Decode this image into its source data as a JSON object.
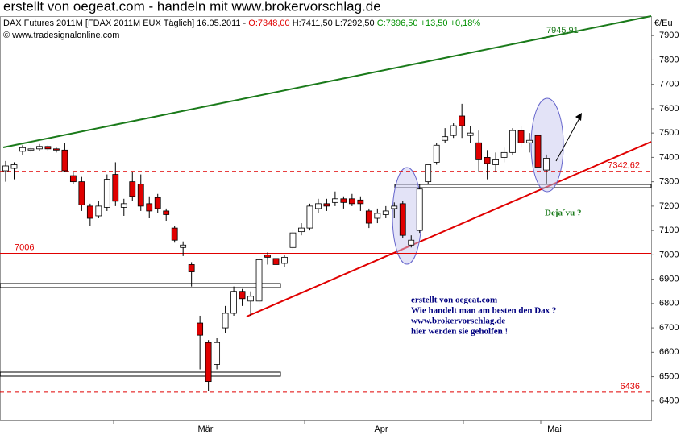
{
  "header": {
    "title": "erstellt von oegeat.com - handeln mit www.brokervorschlag.de",
    "instrument": "DAX Futures 2011M [FDAX 2011M EUX  Täglich] 16.05.2011 -",
    "open": "O:7348,00",
    "hlc": "H:7411,50 L:7292,50",
    "close": "C:7396,50 +13,50 +0,18%",
    "copyright": "© www.tradesignalonline.com"
  },
  "chart_data": {
    "type": "candlestick",
    "y_unit": "€/Eu",
    "up_color": "#ffffff",
    "down_color": "#e00000",
    "open": [
      7345,
      7355,
      7425,
      7430,
      7435,
      7445,
      7435,
      7430,
      7325,
      7300,
      7200,
      7160,
      7195,
      7330,
      7195,
      7300,
      7290,
      7210,
      7235,
      7180,
      7110,
      7030,
      6960,
      6720,
      6640,
      6550,
      6700,
      6760,
      6850,
      6810,
      6810,
      7000,
      6985,
      6965,
      7030,
      7095,
      7110,
      7190,
      7210,
      7215,
      7230,
      7230,
      7225,
      7180,
      7150,
      7165,
      7190,
      7210,
      7040,
      7100,
      7300,
      7380,
      7470,
      7490,
      7570,
      7490,
      7460,
      7400,
      7370,
      7400,
      7420,
      7510,
      7460,
      7490,
      7348
    ],
    "high": [
      7385,
      7380,
      7450,
      7445,
      7455,
      7450,
      7440,
      7460,
      7340,
      7320,
      7210,
      7220,
      7330,
      7380,
      7230,
      7340,
      7330,
      7240,
      7250,
      7190,
      7120,
      7055,
      6970,
      6750,
      6650,
      6660,
      6790,
      6870,
      6860,
      6850,
      6990,
      7010,
      7000,
      7000,
      7100,
      7130,
      7210,
      7230,
      7230,
      7260,
      7240,
      7250,
      7240,
      7190,
      7190,
      7200,
      7215,
      7220,
      7080,
      7290,
      7370,
      7460,
      7520,
      7540,
      7620,
      7530,
      7510,
      7430,
      7420,
      7440,
      7520,
      7530,
      7500,
      7510,
      7411.5
    ],
    "low": [
      7300,
      7310,
      7410,
      7420,
      7425,
      7425,
      7420,
      7340,
      7290,
      7180,
      7120,
      7150,
      7180,
      7200,
      7160,
      7220,
      7180,
      7150,
      7170,
      7140,
      7050,
      6995,
      6870,
      6530,
      6440,
      6530,
      6680,
      6750,
      6790,
      6750,
      6800,
      6960,
      6940,
      6950,
      7020,
      7080,
      7100,
      7170,
      7180,
      7200,
      7190,
      7200,
      7180,
      7110,
      7130,
      7150,
      7150,
      7070,
      7030,
      7090,
      7290,
      7370,
      7460,
      7480,
      7480,
      7460,
      7340,
      7310,
      7340,
      7380,
      7410,
      7440,
      7420,
      7340,
      7292.5
    ],
    "close": [
      7365,
      7370,
      7440,
      7435,
      7445,
      7435,
      7430,
      7345,
      7300,
      7205,
      7150,
      7200,
      7310,
      7220,
      7210,
      7240,
      7200,
      7180,
      7190,
      7165,
      7060,
      7040,
      6930,
      6670,
      6480,
      6640,
      6760,
      6850,
      6820,
      6830,
      6980,
      6990,
      6960,
      6990,
      7090,
      7110,
      7200,
      7210,
      7200,
      7230,
      7215,
      7210,
      7210,
      7130,
      7170,
      7180,
      7200,
      7080,
      7060,
      7270,
      7370,
      7450,
      7485,
      7530,
      7530,
      7500,
      7390,
      7375,
      7390,
      7420,
      7510,
      7460,
      7470,
      7360,
      7396.5
    ],
    "months": [
      "Mär",
      "Apr",
      "Mai"
    ],
    "ylim": [
      6320,
      7980
    ],
    "yticks": [
      6400,
      6500,
      6600,
      6700,
      6800,
      6900,
      7000,
      7100,
      7200,
      7300,
      7400,
      7500,
      7600,
      7700,
      7800,
      7900
    ],
    "levels": [
      {
        "value": 7342.62,
        "label": "7342,62",
        "dashed": true,
        "align": "right"
      },
      {
        "value": 7006,
        "label": "7006",
        "dashed": false,
        "align": "left"
      },
      {
        "value": 6436,
        "label": "6436",
        "dashed": true,
        "align": "right"
      }
    ],
    "level_color": "#e00000",
    "trend_label": "7945,91",
    "annotation_lines": [
      "erstellt von oegeat.com",
      "Wie handelt man am besten den Dax ?",
      "www.brokervorschlag.de",
      "hier werden sie geholfen !"
    ],
    "deja_vu": "Deja´vu ?"
  }
}
